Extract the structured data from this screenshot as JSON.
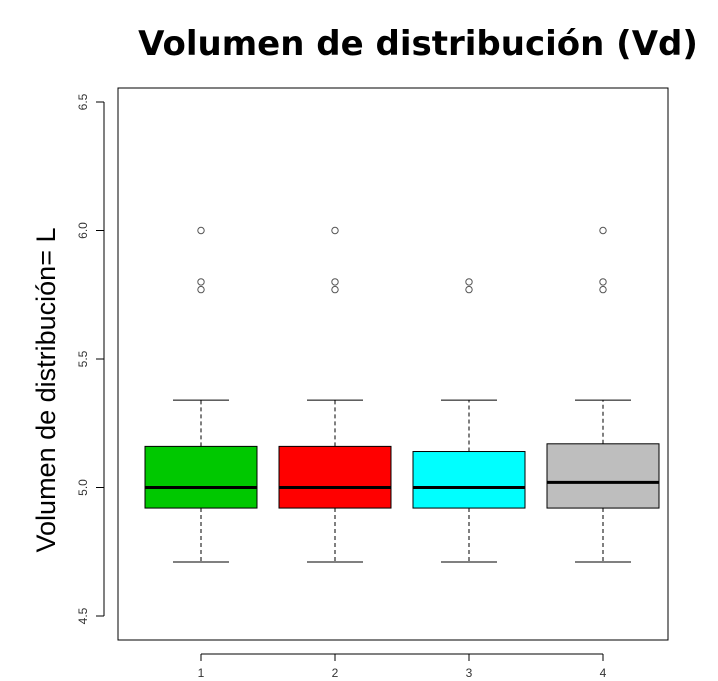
{
  "chart_data": {
    "type": "box",
    "title": "Volumen de distribución (Vd)",
    "xlabel": "",
    "ylabel": "Volumen de distribución= L",
    "ylim": [
      4.5,
      6.5
    ],
    "yticks": [
      "4.5",
      "5.0",
      "5.5",
      "6.0",
      "6.5"
    ],
    "grid": false,
    "legend": "none",
    "categories": [
      "1",
      "2",
      "3",
      "4"
    ],
    "boxes": [
      {
        "label": "1",
        "color": "#00c800",
        "whisker_low": 4.71,
        "q1": 4.92,
        "median": 5.0,
        "q3": 5.16,
        "whisker_high": 5.34,
        "outliers": [
          5.77,
          5.8,
          6.0
        ]
      },
      {
        "label": "2",
        "color": "#ff0000",
        "whisker_low": 4.71,
        "q1": 4.92,
        "median": 5.0,
        "q3": 5.16,
        "whisker_high": 5.34,
        "outliers": [
          5.77,
          5.8,
          6.0
        ]
      },
      {
        "label": "3",
        "color": "#00ffff",
        "whisker_low": 4.71,
        "q1": 4.92,
        "median": 5.0,
        "q3": 5.14,
        "whisker_high": 5.34,
        "outliers": [
          5.77,
          5.8
        ]
      },
      {
        "label": "4",
        "color": "#bebebe",
        "whisker_low": 4.71,
        "q1": 4.92,
        "median": 5.02,
        "q3": 5.17,
        "whisker_high": 5.34,
        "outliers": [
          5.77,
          5.8,
          6.0
        ]
      }
    ]
  }
}
